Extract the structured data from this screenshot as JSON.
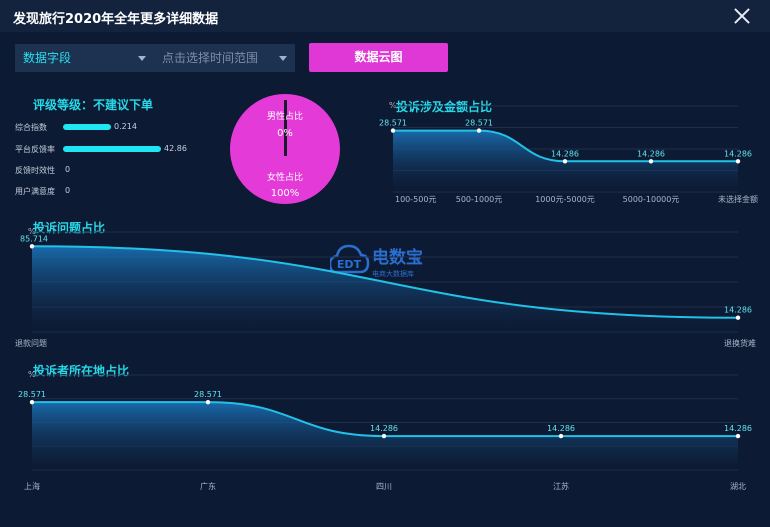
{
  "window": {
    "title": "发现旅行2020年全年更多详细数据"
  },
  "controls": {
    "field_select": "数据字段",
    "time_select_placeholder": "点击选择时间范围",
    "cloud_button": "数据云图"
  },
  "rating": {
    "heading": "评级等级：不建议下单",
    "rows": [
      {
        "label": "综合指数",
        "value": 0.214
      },
      {
        "label": "平台反馈率",
        "value": 42.86
      },
      {
        "label": "反馈时效性",
        "value": 0
      },
      {
        "label": "用户满意度",
        "value": 0
      }
    ]
  },
  "gender": {
    "male_label": "男性占比",
    "male_value": "0%",
    "female_label": "女性占比",
    "female_value": "100%",
    "colors": {
      "female": "#e33ad8",
      "male": "#1a1a2e"
    }
  },
  "watermark": {
    "brand": "电数宝",
    "sub": "电商大数据库",
    "logo_text": "EDT"
  },
  "chart_data": [
    {
      "type": "area",
      "title": "投诉涉及金额占比",
      "ylabel": "%",
      "categories": [
        "100-500元",
        "500-1000元",
        "1000元-5000元",
        "5000-10000元",
        "未选择金额"
      ],
      "values": [
        28.571,
        28.571,
        14.286,
        14.286,
        14.286
      ],
      "ylim": [
        0,
        40
      ]
    },
    {
      "type": "area",
      "title": "投诉问题占比",
      "ylabel": "%",
      "categories": [
        "退款问题",
        "退换货难"
      ],
      "values": [
        85.714,
        14.286
      ],
      "ylim": [
        0,
        100
      ]
    },
    {
      "type": "area",
      "title": "投诉者所在地占比",
      "ylabel": "%",
      "categories": [
        "上海",
        "广东",
        "四川",
        "江苏",
        "湖北"
      ],
      "values": [
        28.571,
        28.571,
        14.286,
        14.286,
        14.286
      ],
      "ylim": [
        0,
        40
      ]
    }
  ]
}
